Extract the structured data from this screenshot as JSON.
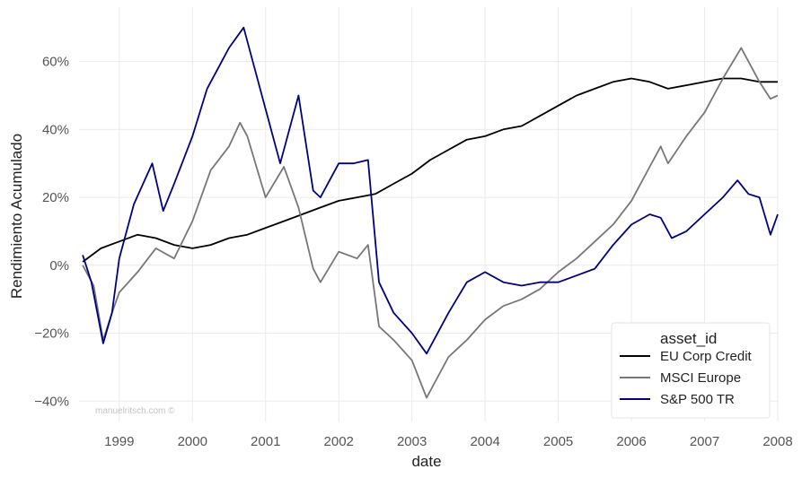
{
  "chart_data": {
    "type": "line",
    "title": "",
    "xlabel": "date",
    "ylabel": "Rendimiento Acumulado",
    "watermark": "manuelritsch.com ©",
    "xlim": [
      1998.45,
      2008.0
    ],
    "ylim": [
      -0.46,
      0.76
    ],
    "x_ticks": [
      1999,
      2000,
      2001,
      2002,
      2003,
      2004,
      2005,
      2006,
      2007,
      2008
    ],
    "x_tick_labels": [
      "1999",
      "2000",
      "2001",
      "2002",
      "2003",
      "2004",
      "2005",
      "2006",
      "2007",
      "2008"
    ],
    "y_ticks": [
      -0.4,
      -0.2,
      0.0,
      0.2,
      0.4,
      0.6
    ],
    "y_tick_labels": [
      "−40%",
      "−20%",
      "0%",
      "20%",
      "40%",
      "60%"
    ],
    "grid": true,
    "legend": {
      "title": "asset_id",
      "placement": "bottom-right"
    },
    "series": [
      {
        "name": "EU Corp Credit",
        "color": "#000000",
        "x": [
          1998.5,
          1998.75,
          1999.0,
          1999.25,
          1999.5,
          1999.75,
          2000.0,
          2000.25,
          2000.5,
          2000.75,
          2001.0,
          2001.25,
          2001.5,
          2001.75,
          2002.0,
          2002.25,
          2002.5,
          2002.75,
          2003.0,
          2003.25,
          2003.5,
          2003.75,
          2004.0,
          2004.25,
          2004.5,
          2004.75,
          2005.0,
          2005.25,
          2005.5,
          2005.75,
          2006.0,
          2006.25,
          2006.5,
          2006.75,
          2007.0,
          2007.25,
          2007.5,
          2007.75,
          2008.0
        ],
        "y": [
          0.01,
          0.05,
          0.07,
          0.09,
          0.08,
          0.06,
          0.05,
          0.06,
          0.08,
          0.09,
          0.11,
          0.13,
          0.15,
          0.17,
          0.19,
          0.2,
          0.21,
          0.24,
          0.27,
          0.31,
          0.34,
          0.37,
          0.38,
          0.4,
          0.41,
          0.44,
          0.47,
          0.5,
          0.52,
          0.54,
          0.55,
          0.54,
          0.52,
          0.53,
          0.54,
          0.55,
          0.55,
          0.54,
          0.54
        ]
      },
      {
        "name": "MSCI Europe",
        "color": "#777777",
        "x": [
          1998.5,
          1998.65,
          1998.78,
          1998.9,
          1999.0,
          1999.25,
          1999.5,
          1999.75,
          2000.0,
          2000.25,
          2000.5,
          2000.65,
          2000.75,
          2001.0,
          2001.25,
          2001.45,
          2001.65,
          2001.75,
          2002.0,
          2002.25,
          2002.4,
          2002.55,
          2002.75,
          2003.0,
          2003.2,
          2003.5,
          2003.75,
          2004.0,
          2004.25,
          2004.5,
          2004.75,
          2005.0,
          2005.25,
          2005.5,
          2005.75,
          2006.0,
          2006.25,
          2006.4,
          2006.5,
          2006.75,
          2007.0,
          2007.25,
          2007.5,
          2007.6,
          2007.75,
          2007.9,
          2008.0
        ],
        "y": [
          0.0,
          -0.06,
          -0.22,
          -0.14,
          -0.08,
          -0.02,
          0.05,
          0.02,
          0.13,
          0.28,
          0.35,
          0.42,
          0.38,
          0.2,
          0.29,
          0.17,
          -0.01,
          -0.05,
          0.04,
          0.02,
          0.06,
          -0.18,
          -0.22,
          -0.28,
          -0.39,
          -0.27,
          -0.22,
          -0.16,
          -0.12,
          -0.1,
          -0.07,
          -0.02,
          0.02,
          0.07,
          0.12,
          0.19,
          0.29,
          0.35,
          0.3,
          0.38,
          0.45,
          0.55,
          0.64,
          0.6,
          0.54,
          0.49,
          0.5
        ]
      },
      {
        "name": "S&P 500 TR",
        "color": "#000080",
        "x": [
          1998.5,
          1998.62,
          1998.78,
          1998.9,
          1999.0,
          1999.2,
          1999.45,
          1999.6,
          1999.75,
          2000.0,
          2000.2,
          2000.35,
          2000.5,
          2000.7,
          2000.85,
          2001.0,
          2001.2,
          2001.45,
          2001.65,
          2001.75,
          2002.0,
          2002.2,
          2002.4,
          2002.55,
          2002.75,
          2003.0,
          2003.2,
          2003.5,
          2003.75,
          2004.0,
          2004.25,
          2004.5,
          2004.75,
          2005.0,
          2005.25,
          2005.5,
          2005.75,
          2006.0,
          2006.25,
          2006.4,
          2006.55,
          2006.75,
          2007.0,
          2007.25,
          2007.45,
          2007.6,
          2007.75,
          2007.9,
          2008.0
        ],
        "y": [
          0.03,
          -0.05,
          -0.23,
          -0.14,
          0.02,
          0.18,
          0.3,
          0.16,
          0.24,
          0.38,
          0.52,
          0.58,
          0.64,
          0.7,
          0.58,
          0.46,
          0.3,
          0.5,
          0.22,
          0.2,
          0.3,
          0.3,
          0.31,
          -0.05,
          -0.14,
          -0.2,
          -0.26,
          -0.14,
          -0.05,
          -0.02,
          -0.05,
          -0.06,
          -0.05,
          -0.05,
          -0.03,
          -0.01,
          0.06,
          0.12,
          0.15,
          0.14,
          0.08,
          0.1,
          0.15,
          0.2,
          0.25,
          0.21,
          0.2,
          0.09,
          0.15
        ]
      }
    ]
  }
}
